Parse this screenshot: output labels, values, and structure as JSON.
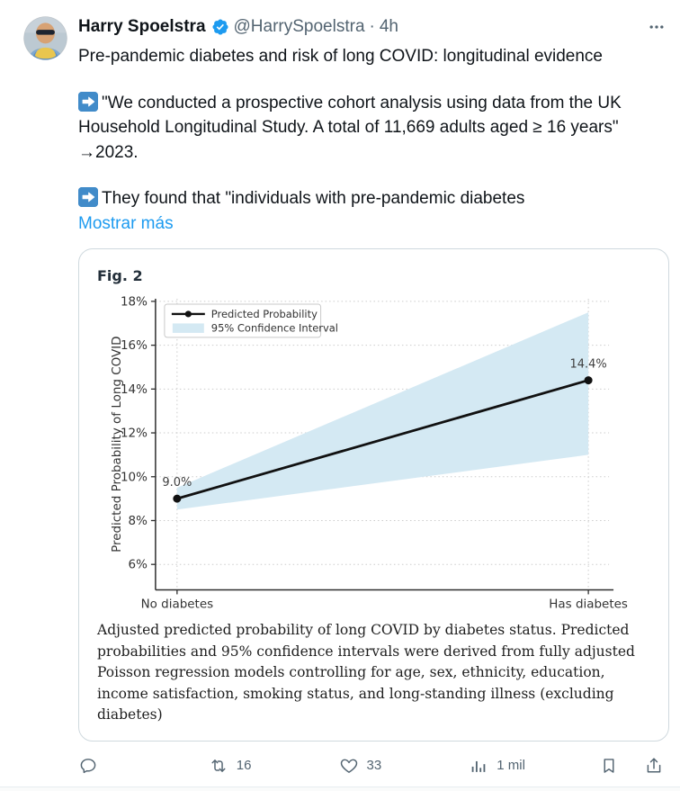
{
  "colors": {
    "accent": "#1d9bf0",
    "secondary": "#536471",
    "text": "#0f1419",
    "band": "#d4e9f3",
    "line": "#111111",
    "emoji_blue": "#418bc9"
  },
  "header": {
    "author": "Harry Spoelstra",
    "verified_icon": "verified-badge",
    "handle": "@HarrySpoelstra",
    "separator": "·",
    "time": "4h"
  },
  "body": {
    "line1": "Pre-pandemic diabetes and risk of long COVID: longitudinal evidence",
    "arrow_emoji": "→",
    "para2_main": "\"We conducted a prospective cohort analysis using data from the UK Household Longitudinal Study. A total of 11,669 adults aged ≥ 16 years\"",
    "para2_cont": "→2023.",
    "para3": "They found that \"individuals with pre-pandemic diabetes",
    "show_more": "Mostrar más"
  },
  "figure": {
    "label": "Fig. 2",
    "caption": "Adjusted predicted probability of long COVID by diabetes status. Predicted probabilities and 95% confidence intervals were derived from fully adjusted Poisson regression models controlling for age, sex, ethnicity, education, income satisfaction, smoking status, and long-standing illness (excluding diabetes)"
  },
  "chart_data": {
    "type": "line",
    "title": "Fig. 2",
    "categories": [
      "No diabetes",
      "Has diabetes"
    ],
    "series": [
      {
        "name": "Predicted Probability",
        "values": [
          9.0,
          14.4
        ]
      },
      {
        "name": "95% Confidence Interval",
        "lower": [
          8.5,
          11.0
        ],
        "upper": [
          9.5,
          17.5
        ]
      }
    ],
    "point_labels": [
      "9.0%",
      "14.4%"
    ],
    "ylabel": "Predicted Probability of Long COVID",
    "xlabel": "",
    "yticks": [
      6,
      8,
      10,
      12,
      14,
      16,
      18
    ],
    "ytick_suffix": "%",
    "ylim": [
      4.84,
      18.12
    ],
    "grid": "dotted",
    "legend_position": "upper-left",
    "legend": [
      "Predicted Probability",
      "95% Confidence Interval"
    ]
  },
  "actions": {
    "reply_count": "",
    "retweet_count": "16",
    "like_count": "33",
    "view_count": "1 mil"
  }
}
